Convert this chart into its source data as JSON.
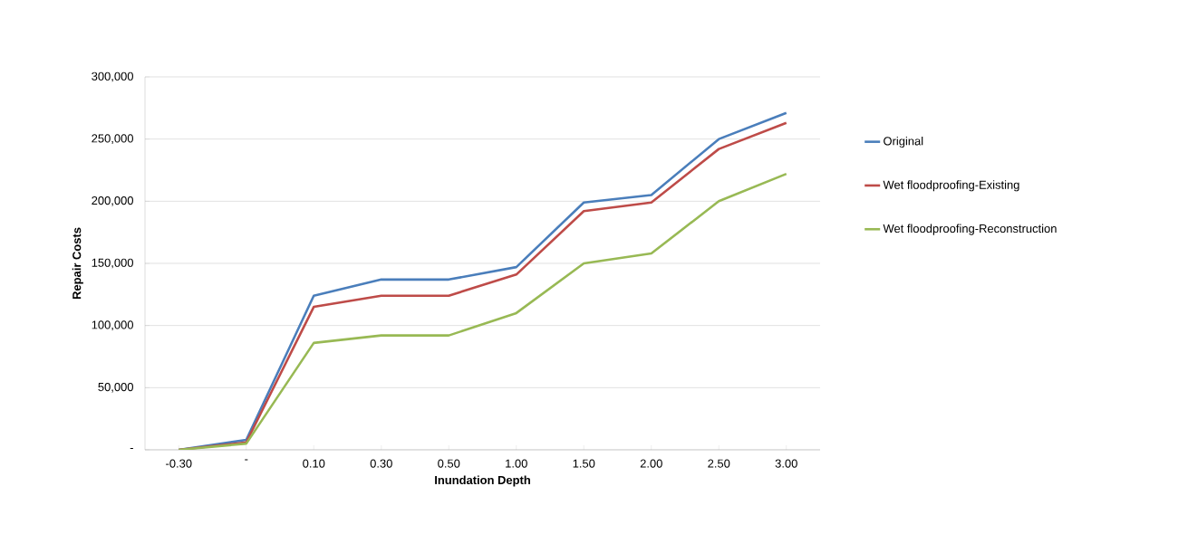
{
  "chart_data": {
    "type": "line",
    "xlabel": "Inundation Depth",
    "ylabel": "Repair Costs",
    "categories": [
      "-0.30",
      "-",
      "0.10",
      "0.30",
      "0.50",
      "1.00",
      "1.50",
      "2.00",
      "2.50",
      "3.00"
    ],
    "ylim": [
      0,
      300000
    ],
    "yticks": [
      {
        "value": 0,
        "label": "-"
      },
      {
        "value": 50000,
        "label": "50,000"
      },
      {
        "value": 100000,
        "label": "100,000"
      },
      {
        "value": 150000,
        "label": "150,000"
      },
      {
        "value": 200000,
        "label": "200,000"
      },
      {
        "value": 250000,
        "label": "250,000"
      },
      {
        "value": 300000,
        "label": "300,000"
      }
    ],
    "grid": "y",
    "legend": "right",
    "marker": "none",
    "line_style": "solid",
    "series": [
      {
        "name": "Original",
        "color": "#4a7ebb",
        "values": [
          0,
          8000,
          124000,
          137000,
          137000,
          147000,
          199000,
          205000,
          250000,
          271000
        ]
      },
      {
        "name": "Wet floodproofing-Existing",
        "color": "#be4b48",
        "values": [
          0,
          6000,
          115000,
          124000,
          124000,
          141000,
          192000,
          199000,
          242000,
          263000
        ]
      },
      {
        "name": "Wet floodproofing-Reconstruction",
        "color": "#98b954",
        "values": [
          0,
          5000,
          86000,
          92000,
          92000,
          110000,
          150000,
          158000,
          200000,
          222000
        ]
      }
    ]
  }
}
